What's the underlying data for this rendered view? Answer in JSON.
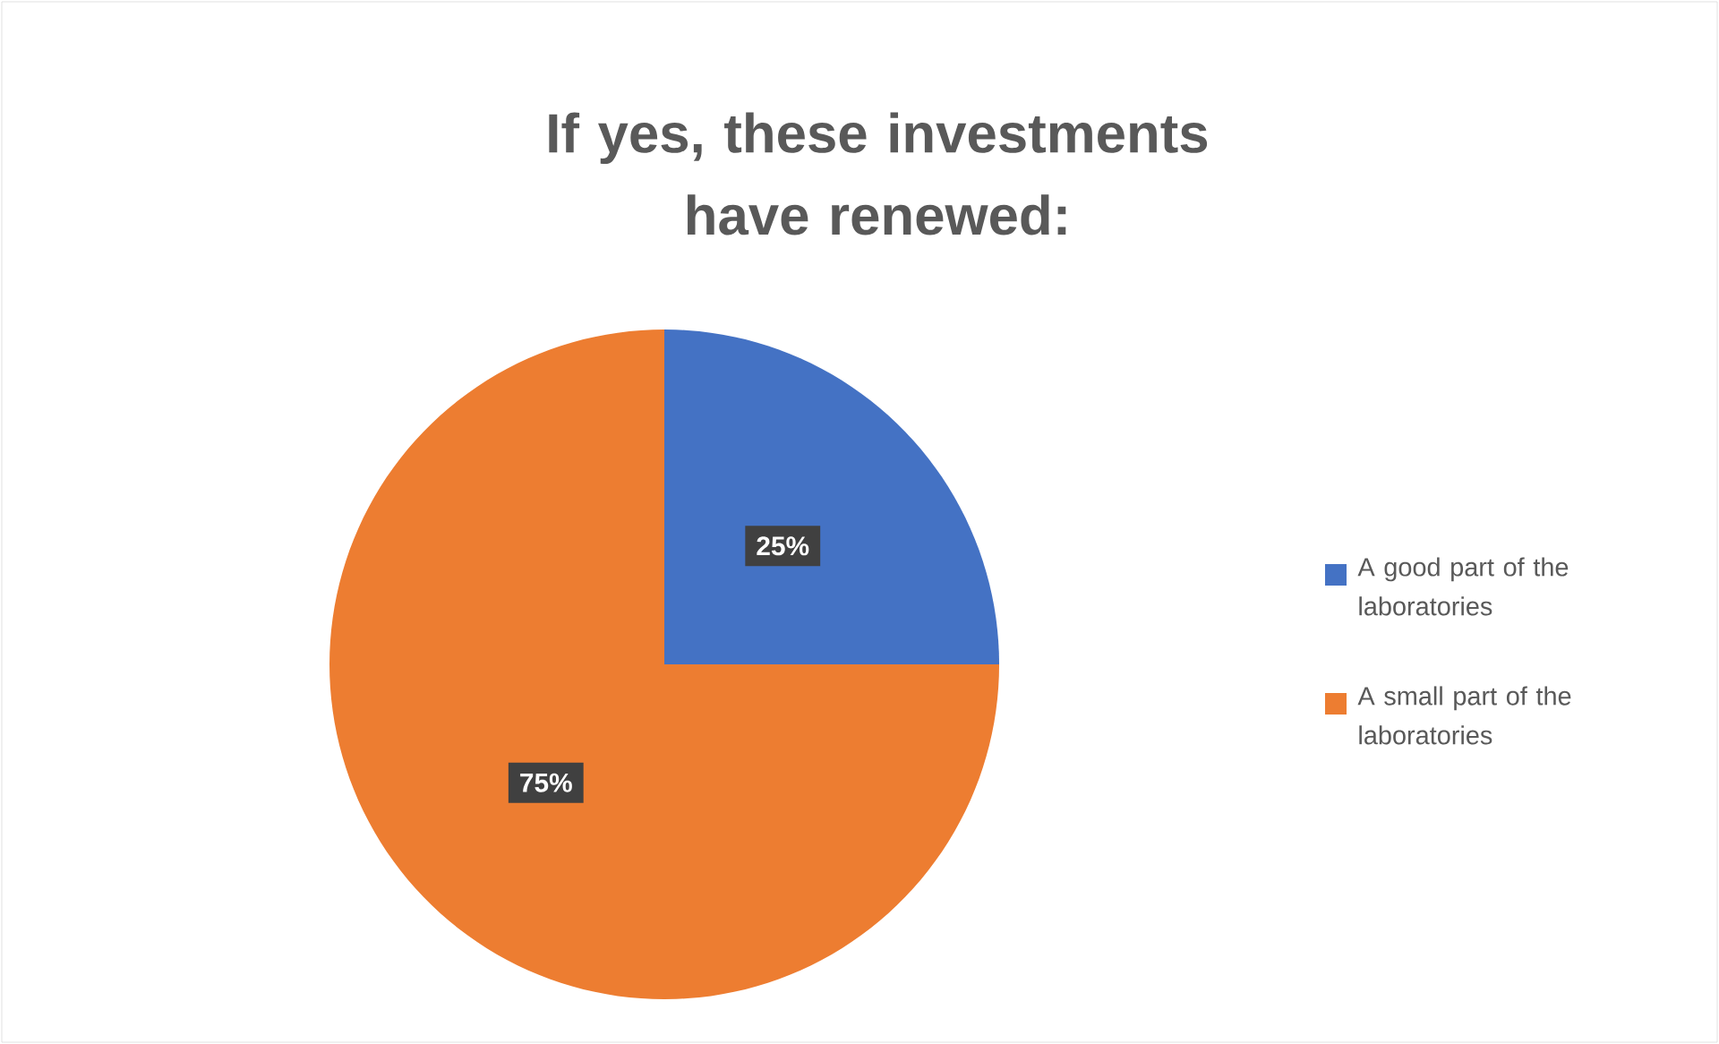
{
  "chart_data": {
    "type": "pie",
    "title": "If yes, these investments have renewed:",
    "categories": [
      "A good part of the laboratories",
      "A small part of the laboratories"
    ],
    "values": [
      25,
      75
    ],
    "value_labels": [
      "25%",
      "75%"
    ],
    "colors": [
      "#4472c4",
      "#ed7d31"
    ],
    "legend": "right"
  }
}
